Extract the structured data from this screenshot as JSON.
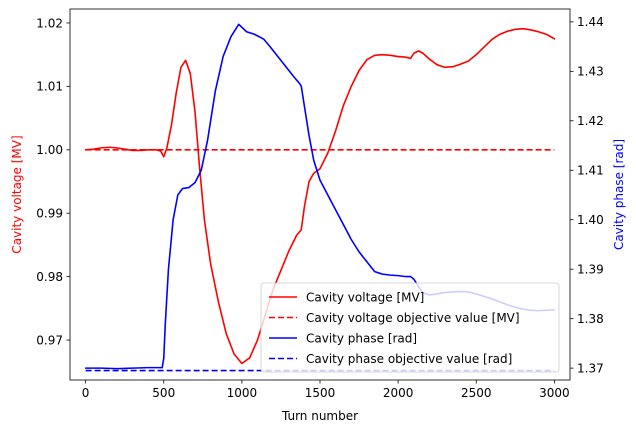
{
  "chart_data": {
    "type": "line",
    "xlabel": "Turn number",
    "ylabel_left": "Cavity voltage [MV]",
    "ylabel_right": "Cavity phase [rad]",
    "xlim": [
      -100,
      3100
    ],
    "ylim_left": [
      0.9637,
      1.0222
    ],
    "ylim_right": [
      1.3676,
      1.4426
    ],
    "xticks": [
      0,
      500,
      1000,
      1500,
      2000,
      2500,
      3000
    ],
    "yticks_left": [
      0.97,
      0.98,
      0.99,
      1.0,
      1.01,
      1.02
    ],
    "yticks_right": [
      1.37,
      1.38,
      1.39,
      1.4,
      1.41,
      1.42,
      1.43,
      1.44
    ],
    "grid": false,
    "legend_position": "lower right",
    "colors": {
      "voltage": "#ff0000",
      "phase": "#0000ff",
      "left_axis_label": "#ff0000",
      "right_axis_label": "#0000ff"
    },
    "series": [
      {
        "name": "Cavity voltage [MV]",
        "axis": "left",
        "style": "solid",
        "color": "#ff0000",
        "x": [
          0,
          50,
          100,
          150,
          200,
          250,
          300,
          350,
          400,
          450,
          480,
          500,
          520,
          550,
          580,
          610,
          640,
          670,
          700,
          730,
          760,
          800,
          850,
          900,
          950,
          1000,
          1050,
          1100,
          1150,
          1200,
          1250,
          1300,
          1350,
          1380,
          1400,
          1430,
          1460,
          1500,
          1550,
          1600,
          1650,
          1700,
          1750,
          1800,
          1850,
          1900,
          1950,
          2000,
          2050,
          2080,
          2100,
          2130,
          2160,
          2200,
          2250,
          2300,
          2350,
          2400,
          2450,
          2500,
          2550,
          2600,
          2650,
          2700,
          2750,
          2800,
          2850,
          2900,
          2950,
          3000
        ],
        "y": [
          1.0,
          1.0001,
          1.0003,
          1.0004,
          1.0003,
          1.0001,
          0.9999,
          0.9999,
          1.0,
          1.0,
          0.9998,
          0.9989,
          1.0003,
          1.004,
          1.009,
          1.013,
          1.0141,
          1.012,
          1.006,
          0.997,
          0.989,
          0.982,
          0.976,
          0.971,
          0.9678,
          0.9663,
          0.9672,
          0.97,
          0.974,
          0.978,
          0.981,
          0.984,
          0.9865,
          0.9874,
          0.991,
          0.995,
          0.9963,
          0.997,
          0.9995,
          1.003,
          1.007,
          1.01,
          1.0125,
          1.0142,
          1.0149,
          1.015,
          1.0149,
          1.0147,
          1.0146,
          1.0144,
          1.0152,
          1.0156,
          1.0152,
          1.0143,
          1.0134,
          1.013,
          1.0131,
          1.0135,
          1.014,
          1.015,
          1.0162,
          1.0174,
          1.0182,
          1.0187,
          1.019,
          1.0191,
          1.0189,
          1.0186,
          1.0182,
          1.0175
        ]
      },
      {
        "name": "Cavity voltage objective value [MV]",
        "axis": "left",
        "style": "dashed",
        "color": "#ff0000",
        "x": [
          0,
          3000
        ],
        "y": [
          1.0,
          1.0
        ]
      },
      {
        "name": "Cavity phase [rad]",
        "axis": "right",
        "style": "solid",
        "color": "#0000ff",
        "x": [
          0,
          100,
          200,
          300,
          400,
          450,
          490,
          500,
          510,
          530,
          560,
          590,
          620,
          660,
          700,
          740,
          780,
          830,
          880,
          930,
          980,
          1030,
          1080,
          1110,
          1140,
          1180,
          1230,
          1280,
          1330,
          1370,
          1380,
          1400,
          1430,
          1460,
          1500,
          1550,
          1600,
          1650,
          1700,
          1750,
          1800,
          1850,
          1900,
          1950,
          2000,
          2050,
          2080,
          2100,
          2130,
          2160,
          2200,
          2250,
          2300,
          2350,
          2400,
          2450,
          2500,
          2550,
          2600,
          2650,
          2700,
          2750,
          2800,
          2850,
          2900,
          2950,
          3000
        ],
        "y": [
          1.37,
          1.37,
          1.3699,
          1.37,
          1.3701,
          1.3701,
          1.3701,
          1.372,
          1.379,
          1.39,
          1.4,
          1.405,
          1.4063,
          1.4065,
          1.4075,
          1.41,
          1.416,
          1.426,
          1.433,
          1.437,
          1.4395,
          1.438,
          1.4375,
          1.437,
          1.4365,
          1.435,
          1.433,
          1.431,
          1.429,
          1.4275,
          1.427,
          1.423,
          1.417,
          1.412,
          1.408,
          1.405,
          1.402,
          1.399,
          1.396,
          1.3935,
          1.3915,
          1.3895,
          1.389,
          1.3888,
          1.3887,
          1.3885,
          1.3885,
          1.388,
          1.3865,
          1.3852,
          1.3848,
          1.385,
          1.3853,
          1.3854,
          1.3855,
          1.3854,
          1.385,
          1.3845,
          1.384,
          1.3834,
          1.3828,
          1.3823,
          1.3819,
          1.3817,
          1.3816,
          1.3817,
          1.3818
        ]
      },
      {
        "name": "Cavity phase objective value [rad]",
        "axis": "right",
        "style": "dashed",
        "color": "#0000ff",
        "x": [
          0,
          3000
        ],
        "y": [
          1.3695,
          1.3695
        ]
      }
    ]
  }
}
